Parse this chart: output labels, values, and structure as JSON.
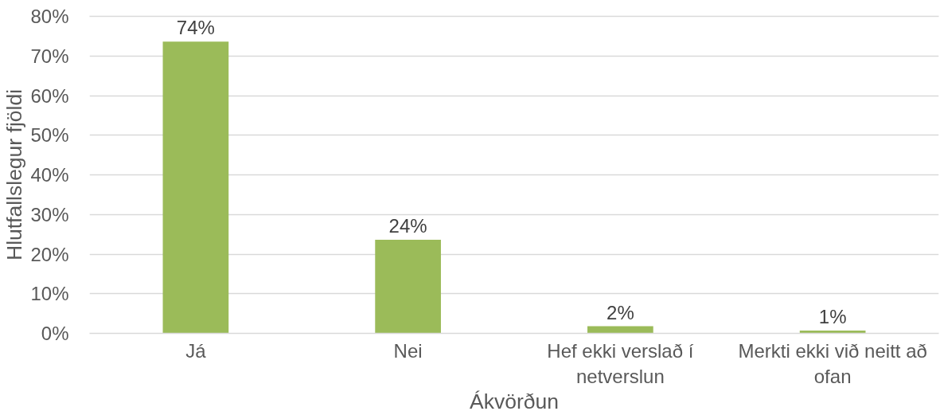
{
  "chart_data": {
    "type": "bar",
    "xlabel": "Ákvörðun",
    "ylabel": "Hlutfallslegur fjöldi",
    "categories": [
      "Já",
      "Nei",
      "Hef ekki verslað í netverslun",
      "Merkti ekki við neitt að ofan"
    ],
    "values": [
      73.6,
      23.6,
      1.8,
      0.7
    ],
    "value_labels": [
      "74%",
      "24%",
      "2%",
      "1%"
    ],
    "color": "#9bbb59",
    "ylim": [
      0,
      80
    ],
    "yticks": [
      {
        "value": 0,
        "label": "0%"
      },
      {
        "value": 10,
        "label": "10%"
      },
      {
        "value": 20,
        "label": "20%"
      },
      {
        "value": 30,
        "label": "30%"
      },
      {
        "value": 40,
        "label": "40%"
      },
      {
        "value": 50,
        "label": "50%"
      },
      {
        "value": 60,
        "label": "60%"
      },
      {
        "value": 70,
        "label": "70%"
      },
      {
        "value": 80,
        "label": "80%"
      }
    ],
    "grid": "y"
  }
}
